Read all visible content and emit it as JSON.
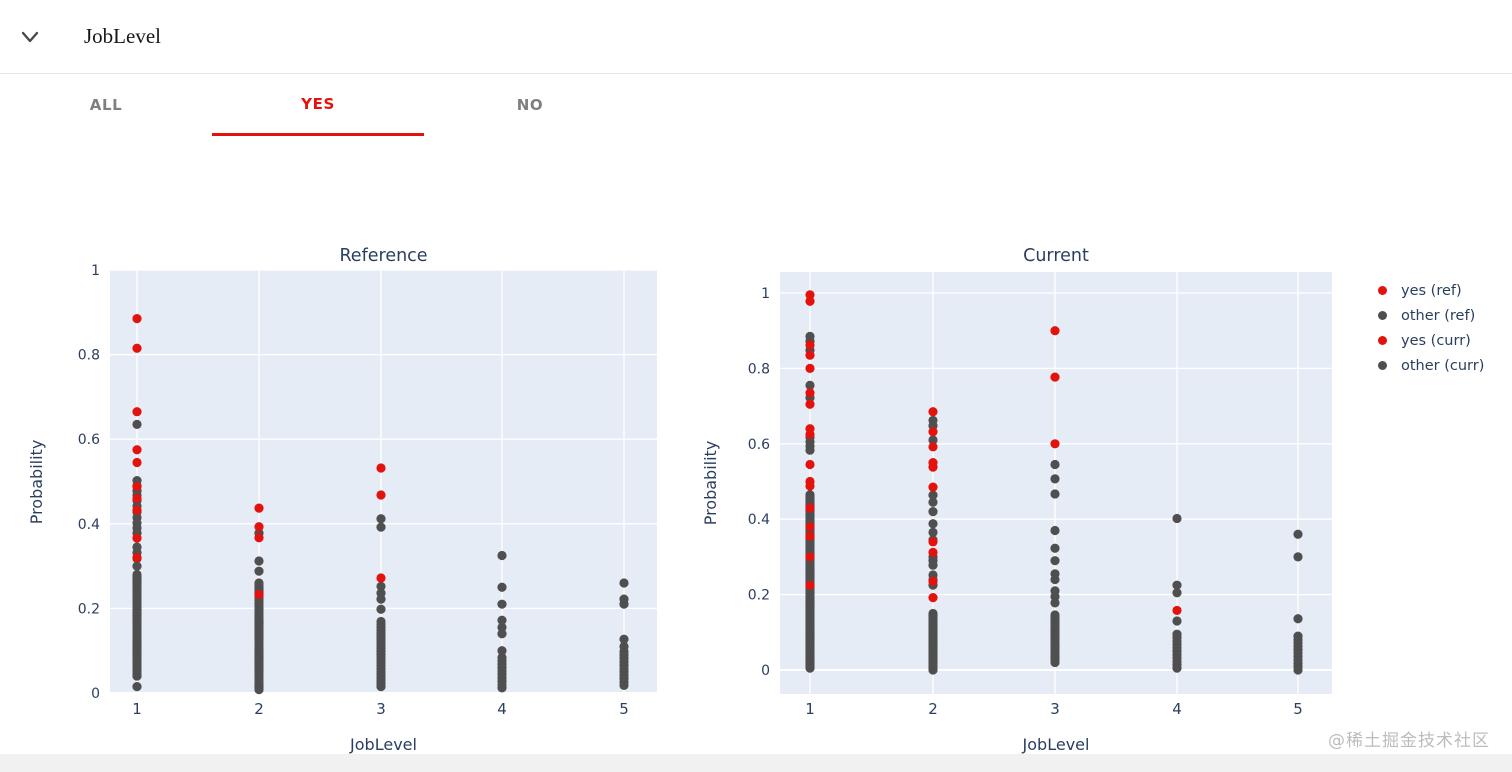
{
  "header": {
    "title": "JobLevel",
    "collapse_icon": "chevron-down"
  },
  "tabs": [
    {
      "label": "ALL",
      "active": false
    },
    {
      "label": "YES",
      "active": true
    },
    {
      "label": "NO",
      "active": false
    }
  ],
  "colors": {
    "accent_red": "#e3120c",
    "dot_other": "#4f4f4f",
    "plot_bg": "#e5ecf6",
    "grid": "#ffffff",
    "axis_text": "#2a3f5f",
    "tab_inactive": "#7f7f7f",
    "watermark": "#bcbcbc"
  },
  "legend": {
    "position": "right-top",
    "items": [
      {
        "label": "yes (ref)",
        "color": "#e3120c"
      },
      {
        "label": "other (ref)",
        "color": "#4f4f4f"
      },
      {
        "label": "yes (curr)",
        "color": "#e3120c"
      },
      {
        "label": "other (curr)",
        "color": "#4f4f4f"
      }
    ]
  },
  "watermark": "@稀土掘金技术社区",
  "chart_data": [
    {
      "type": "scatter",
      "title": "Reference",
      "xlabel": "JobLevel",
      "ylabel": "Probability",
      "categories": [
        1,
        2,
        3,
        4,
        5
      ],
      "yticks": [
        0,
        0.2,
        0.4,
        0.6,
        0.8,
        1
      ],
      "ytick_labels": [
        "0",
        "0.2",
        "0.4",
        "0.6",
        "0.8",
        "1"
      ],
      "ylim": [
        0,
        1
      ],
      "grid": true,
      "series": [
        {
          "name": "yes (ref)",
          "color": "#e3120c",
          "points": [
            [
              1,
              0.885
            ],
            [
              1,
              0.815
            ],
            [
              1,
              0.665
            ],
            [
              1,
              0.575
            ],
            [
              1,
              0.545
            ],
            [
              1,
              0.488
            ],
            [
              1,
              0.46
            ],
            [
              1,
              0.432
            ],
            [
              1,
              0.366
            ],
            [
              1,
              0.32
            ],
            [
              2,
              0.437
            ],
            [
              2,
              0.393
            ],
            [
              2,
              0.367
            ],
            [
              2,
              0.233
            ],
            [
              3,
              0.532
            ],
            [
              3,
              0.468
            ],
            [
              3,
              0.272
            ]
          ]
        },
        {
          "name": "other (ref)",
          "color": "#4f4f4f",
          "points": [
            [
              1,
              0.635
            ],
            [
              1,
              0.502
            ],
            [
              1,
              0.49
            ],
            [
              1,
              0.478
            ],
            [
              1,
              0.468
            ],
            [
              1,
              0.455
            ],
            [
              1,
              0.442
            ],
            [
              1,
              0.428
            ],
            [
              1,
              0.415
            ],
            [
              1,
              0.402
            ],
            [
              1,
              0.39
            ],
            [
              1,
              0.378
            ],
            [
              1,
              0.345
            ],
            [
              1,
              0.332
            ],
            [
              1,
              0.318
            ],
            [
              1,
              0.3
            ],
            [
              1,
              0.015
            ],
            [
              2,
              0.378
            ],
            [
              2,
              0.312
            ],
            [
              2,
              0.288
            ],
            [
              3,
              0.412
            ],
            [
              3,
              0.392
            ],
            [
              3,
              0.252
            ],
            [
              3,
              0.236
            ],
            [
              3,
              0.222
            ],
            [
              3,
              0.198
            ],
            [
              4,
              0.325
            ],
            [
              4,
              0.25
            ],
            [
              4,
              0.21
            ],
            [
              4,
              0.172
            ],
            [
              4,
              0.155
            ],
            [
              4,
              0.14
            ],
            [
              4,
              0.1
            ],
            [
              5,
              0.26
            ],
            [
              5,
              0.222
            ],
            [
              5,
              0.21
            ],
            [
              5,
              0.127
            ],
            [
              5,
              0.11
            ]
          ],
          "dense": [
            {
              "x": 1,
              "from": 0.04,
              "to": 0.285,
              "step": 0.006
            },
            {
              "x": 2,
              "from": 0.008,
              "to": 0.26,
              "step": 0.006
            },
            {
              "x": 3,
              "from": 0.015,
              "to": 0.172,
              "step": 0.007
            },
            {
              "x": 4,
              "from": 0.012,
              "to": 0.085,
              "step": 0.008
            },
            {
              "x": 5,
              "from": 0.018,
              "to": 0.1,
              "step": 0.008
            }
          ]
        }
      ]
    },
    {
      "type": "scatter",
      "title": "Current",
      "xlabel": "JobLevel",
      "ylabel": "Probability",
      "categories": [
        1,
        2,
        3,
        4,
        5
      ],
      "yticks": [
        0,
        0.2,
        0.4,
        0.6,
        0.8,
        1
      ],
      "ytick_labels": [
        "0",
        "0.2",
        "0.4",
        "0.6",
        "0.8",
        "1"
      ],
      "ylim": [
        -0.06,
        1.06
      ],
      "grid": true,
      "series": [
        {
          "name": "yes (curr)",
          "color": "#e3120c",
          "points": [
            [
              1,
              0.995
            ],
            [
              1,
              0.978
            ],
            [
              1,
              0.862
            ],
            [
              1,
              0.835
            ],
            [
              1,
              0.8
            ],
            [
              1,
              0.735
            ],
            [
              1,
              0.705
            ],
            [
              1,
              0.64
            ],
            [
              1,
              0.625
            ],
            [
              1,
              0.545
            ],
            [
              1,
              0.5
            ],
            [
              1,
              0.488
            ],
            [
              1,
              0.43
            ],
            [
              1,
              0.38
            ],
            [
              1,
              0.355
            ],
            [
              1,
              0.3
            ],
            [
              1,
              0.225
            ],
            [
              2,
              0.685
            ],
            [
              2,
              0.632
            ],
            [
              2,
              0.592
            ],
            [
              2,
              0.55
            ],
            [
              2,
              0.538
            ],
            [
              2,
              0.485
            ],
            [
              2,
              0.34
            ],
            [
              2,
              0.312
            ],
            [
              2,
              0.235
            ],
            [
              2,
              0.192
            ],
            [
              3,
              0.9
            ],
            [
              3,
              0.777
            ],
            [
              3,
              0.6
            ],
            [
              4,
              0.158
            ]
          ]
        },
        {
          "name": "other (curr)",
          "color": "#4f4f4f",
          "points": [
            [
              1,
              0.885
            ],
            [
              1,
              0.872
            ],
            [
              1,
              0.848
            ],
            [
              1,
              0.755
            ],
            [
              1,
              0.722
            ],
            [
              1,
              0.617
            ],
            [
              1,
              0.605
            ],
            [
              1,
              0.594
            ],
            [
              1,
              0.583
            ],
            [
              2,
              0.662
            ],
            [
              2,
              0.648
            ],
            [
              2,
              0.61
            ],
            [
              2,
              0.464
            ],
            [
              2,
              0.445
            ],
            [
              2,
              0.42
            ],
            [
              2,
              0.388
            ],
            [
              2,
              0.365
            ],
            [
              2,
              0.345
            ],
            [
              2,
              0.3
            ],
            [
              2,
              0.29
            ],
            [
              2,
              0.278
            ],
            [
              2,
              0.252
            ],
            [
              2,
              0.24
            ],
            [
              2,
              0.225
            ],
            [
              3,
              0.545
            ],
            [
              3,
              0.507
            ],
            [
              3,
              0.467
            ],
            [
              3,
              0.37
            ],
            [
              3,
              0.323
            ],
            [
              3,
              0.29
            ],
            [
              3,
              0.255
            ],
            [
              3,
              0.24
            ],
            [
              3,
              0.21
            ],
            [
              3,
              0.195
            ],
            [
              3,
              0.178
            ],
            [
              4,
              0.402
            ],
            [
              4,
              0.225
            ],
            [
              4,
              0.205
            ],
            [
              4,
              0.13
            ],
            [
              5,
              0.36
            ],
            [
              5,
              0.3
            ],
            [
              5,
              0.136
            ]
          ],
          "dense": [
            {
              "x": 1,
              "from": 0.005,
              "to": 0.467,
              "step": 0.005
            },
            {
              "x": 2,
              "from": 0.0,
              "to": 0.152,
              "step": 0.006
            },
            {
              "x": 3,
              "from": 0.02,
              "to": 0.15,
              "step": 0.007
            },
            {
              "x": 4,
              "from": 0.005,
              "to": 0.095,
              "step": 0.009
            },
            {
              "x": 5,
              "from": 0.0,
              "to": 0.096,
              "step": 0.009
            }
          ]
        }
      ]
    }
  ]
}
